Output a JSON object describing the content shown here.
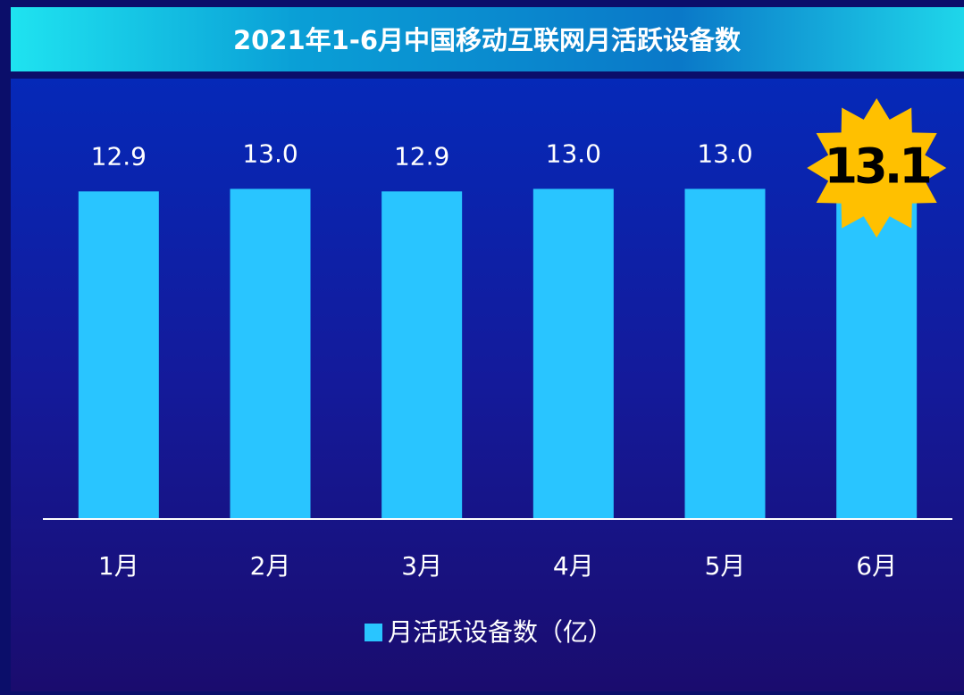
{
  "chart_data": {
    "type": "bar",
    "title": "2021年1-6月中国移动互联网月活跃设备数",
    "categories": [
      "1月",
      "2月",
      "3月",
      "4月",
      "5月",
      "6月"
    ],
    "series": [
      {
        "name": "月活跃设备数（亿）",
        "color": "#29c5ff",
        "values": [
          12.9,
          13.0,
          12.9,
          13.0,
          13.0,
          13.1
        ],
        "value_labels": [
          "12.9",
          "13.0",
          "12.9",
          "13.0",
          "13.0",
          "13.1"
        ]
      }
    ],
    "ylim": [
      0,
      14
    ],
    "highlight_last": true
  }
}
